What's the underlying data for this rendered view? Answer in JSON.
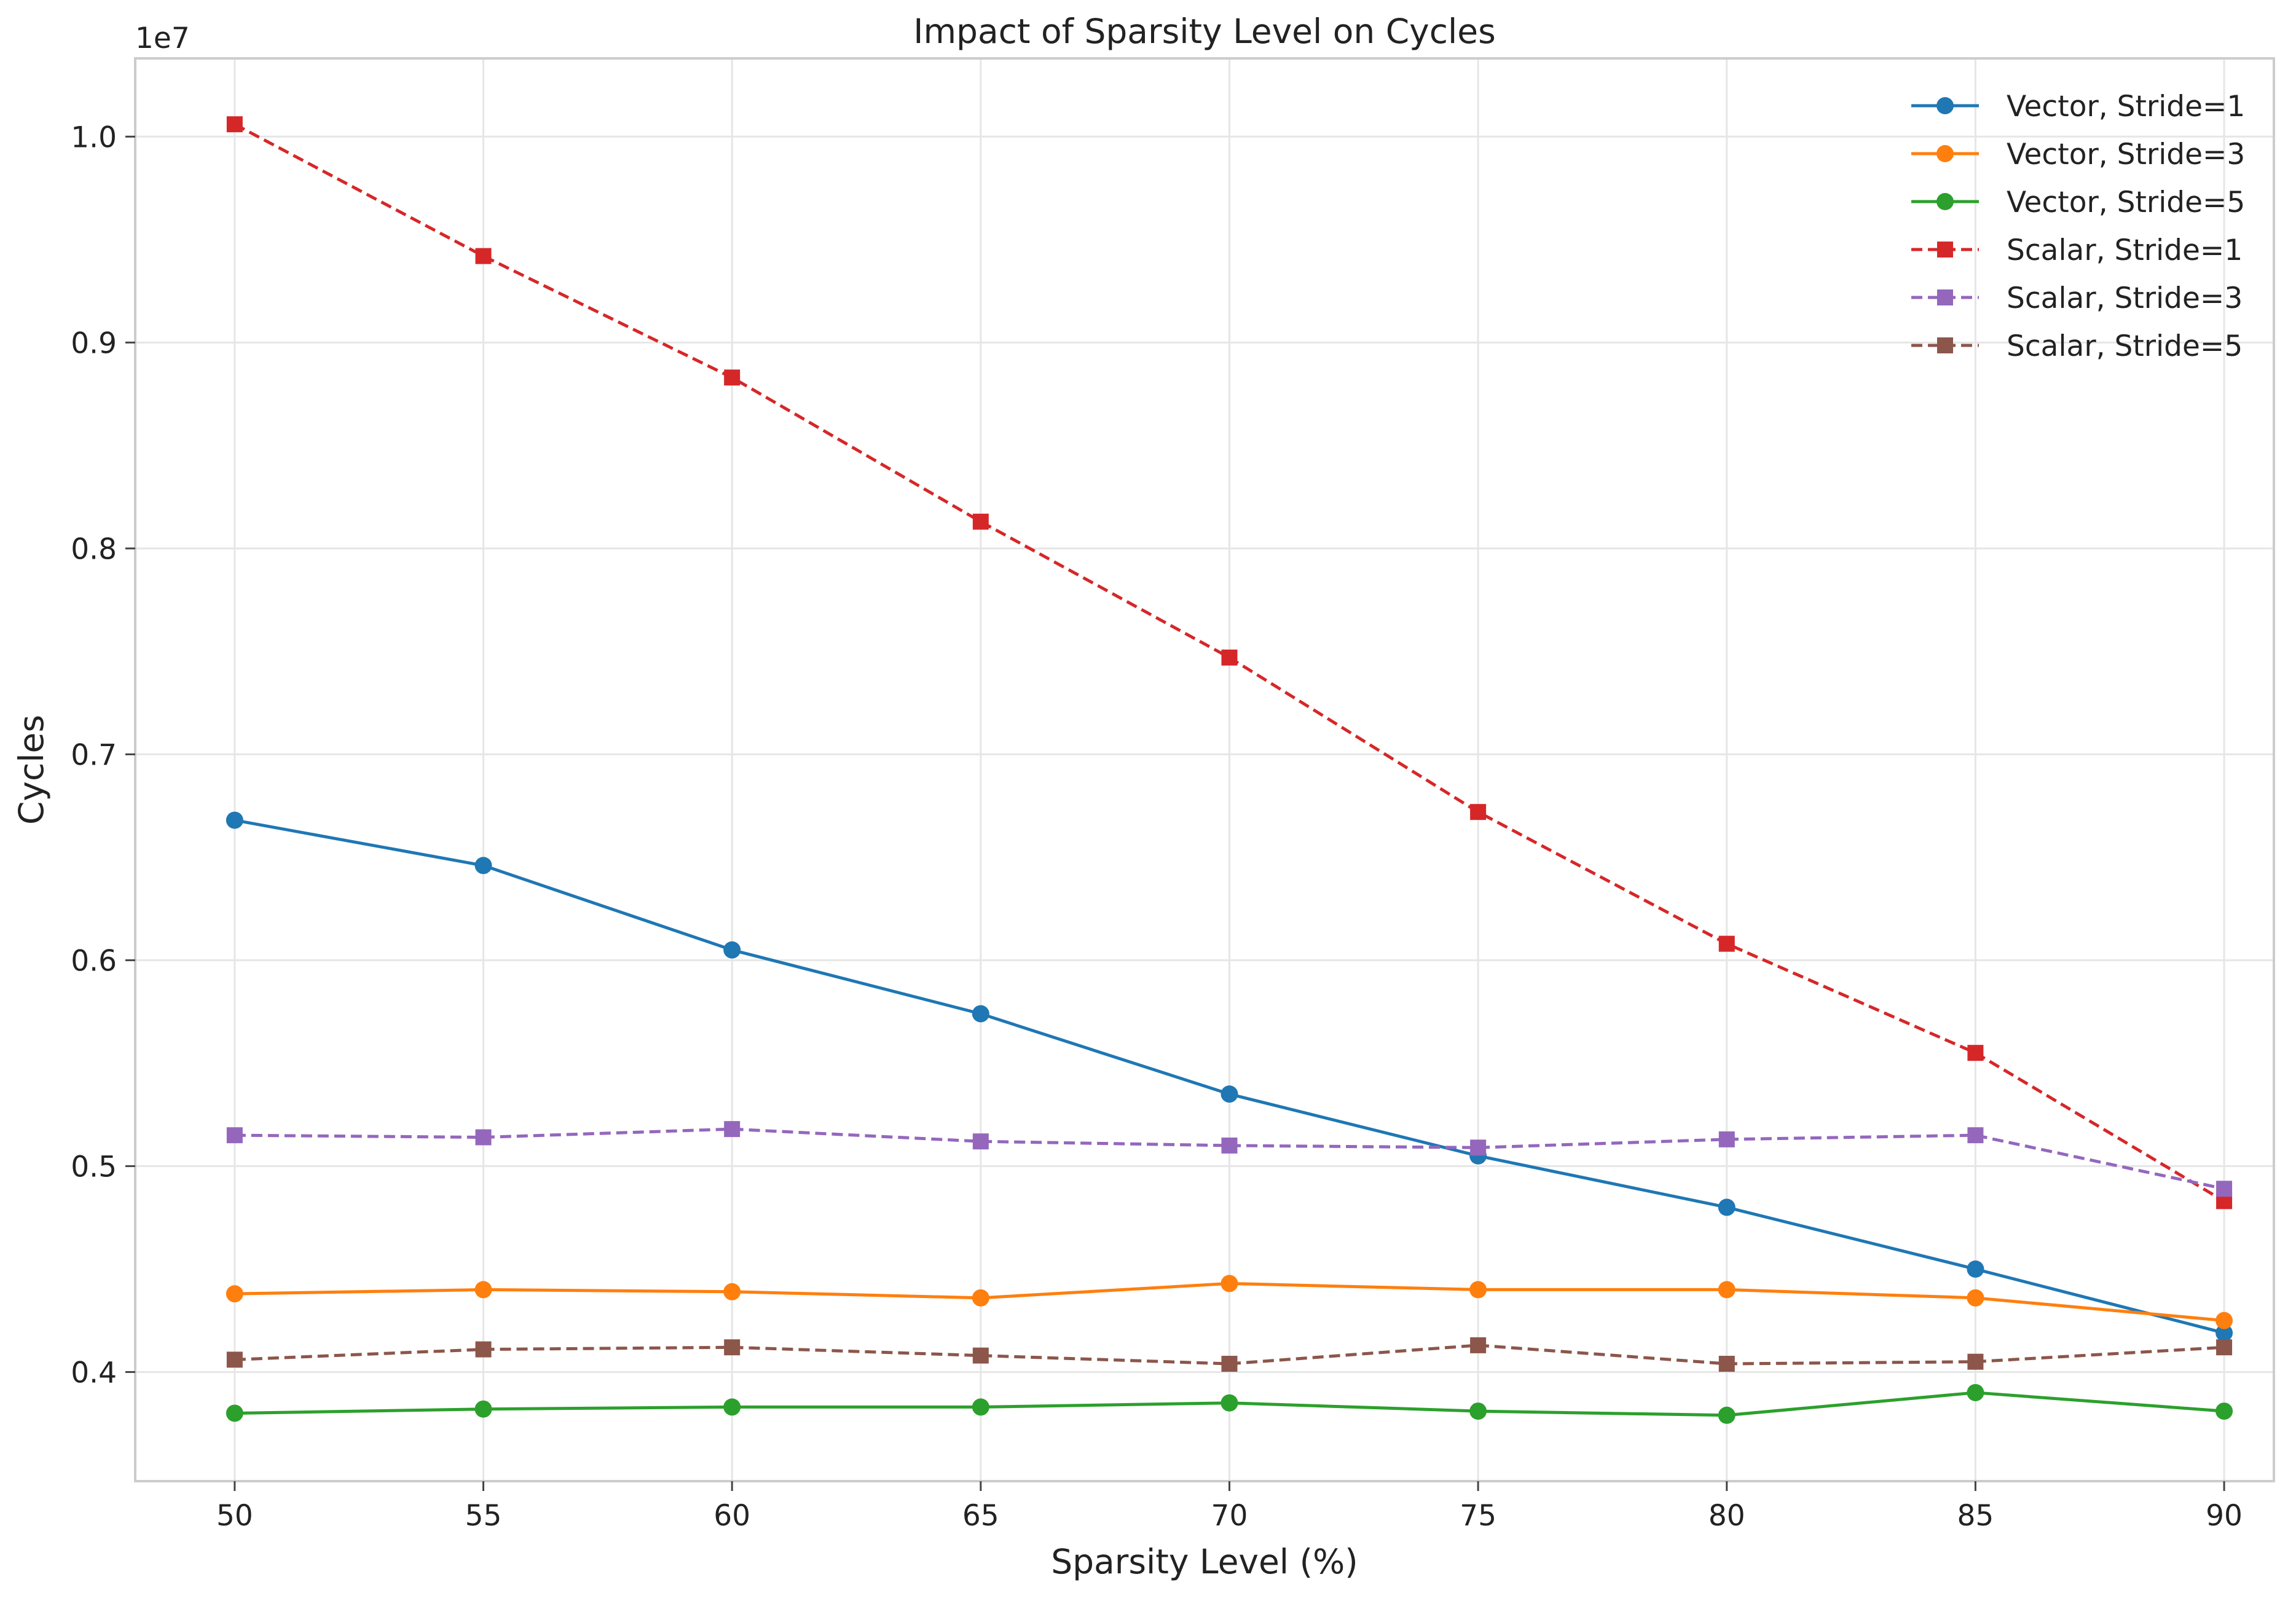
{
  "chart_data": {
    "type": "line",
    "title": "Impact of Sparsity Level on Cycles",
    "xlabel": "Sparsity Level (%)",
    "ylabel": "Cycles",
    "y_offset_label": "1e7",
    "x": [
      50,
      55,
      60,
      65,
      70,
      75,
      80,
      85,
      90
    ],
    "x_ticks": [
      "50",
      "55",
      "60",
      "65",
      "70",
      "75",
      "80",
      "85",
      "90"
    ],
    "y_ticks": [
      {
        "value": 0.4,
        "label": "0.4"
      },
      {
        "value": 0.5,
        "label": "0.5"
      },
      {
        "value": 0.6,
        "label": "0.6"
      },
      {
        "value": 0.7,
        "label": "0.7"
      },
      {
        "value": 0.8,
        "label": "0.8"
      },
      {
        "value": 0.9,
        "label": "0.9"
      },
      {
        "value": 1.0,
        "label": "1.0"
      }
    ],
    "xlim": [
      48,
      91
    ],
    "ylim": [
      0.347,
      1.038
    ],
    "grid": true,
    "legend_position": "top-right",
    "series": [
      {
        "name": "Vector, Stride=1",
        "color": "#1f77b4",
        "marker": "circle",
        "dashed": false,
        "values": [
          0.668,
          0.646,
          0.605,
          0.574,
          0.535,
          0.505,
          0.48,
          0.45,
          0.419
        ]
      },
      {
        "name": "Vector, Stride=3",
        "color": "#ff7f0e",
        "marker": "circle",
        "dashed": false,
        "values": [
          0.438,
          0.44,
          0.439,
          0.436,
          0.443,
          0.44,
          0.44,
          0.436,
          0.425
        ]
      },
      {
        "name": "Vector, Stride=5",
        "color": "#2ca02c",
        "marker": "circle",
        "dashed": false,
        "values": [
          0.38,
          0.382,
          0.383,
          0.383,
          0.385,
          0.381,
          0.379,
          0.39,
          0.381
        ]
      },
      {
        "name": "Scalar, Stride=1",
        "color": "#d62728",
        "marker": "square",
        "dashed": true,
        "values": [
          1.006,
          0.942,
          0.883,
          0.813,
          0.747,
          0.672,
          0.608,
          0.555,
          0.483
        ]
      },
      {
        "name": "Scalar, Stride=3",
        "color": "#9467bd",
        "marker": "square",
        "dashed": true,
        "values": [
          0.515,
          0.514,
          0.518,
          0.512,
          0.51,
          0.509,
          0.513,
          0.515,
          0.489
        ]
      },
      {
        "name": "Scalar, Stride=5",
        "color": "#8c564b",
        "marker": "square",
        "dashed": true,
        "values": [
          0.406,
          0.411,
          0.412,
          0.408,
          0.404,
          0.413,
          0.404,
          0.405,
          0.412
        ]
      }
    ]
  }
}
